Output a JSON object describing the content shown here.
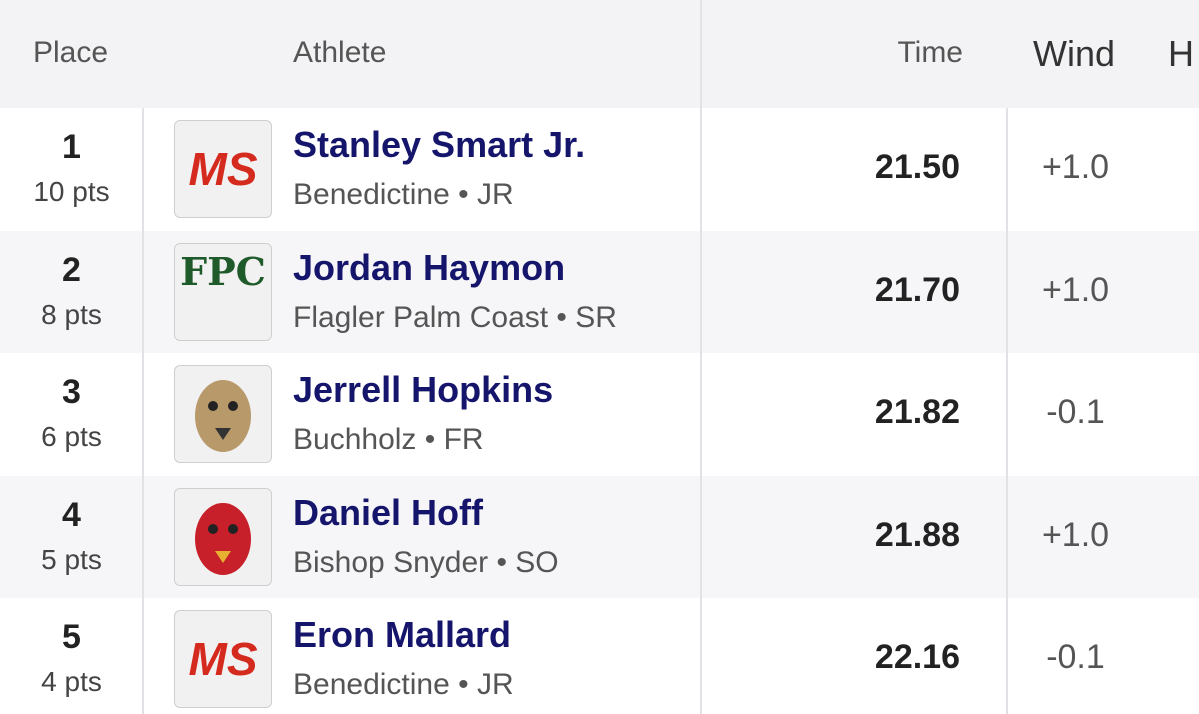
{
  "header": {
    "columns": [
      "Place",
      "Athlete",
      "Time",
      "Wind",
      "H"
    ]
  },
  "table": {
    "rows": [
      {
        "place": "1",
        "points": "10 pts",
        "logo": "MS",
        "name": "Stanley Smart Jr.",
        "school": "Benedictine • JR",
        "time": "21.50",
        "wind": "+1.0"
      },
      {
        "place": "2",
        "points": "8 pts",
        "logo": "FPC",
        "name": "Jordan Haymon",
        "school": "Flagler Palm Coast • SR",
        "time": "21.70",
        "wind": "+1.0"
      },
      {
        "place": "3",
        "points": "6 pts",
        "name": "Jerrell Hopkins",
        "school": "Buchholz • FR",
        "time": "21.82",
        "wind": "-0.1"
      },
      {
        "place": "4",
        "points": "5 pts",
        "name": "Daniel Hoff",
        "school": "Bishop Snyder • SO",
        "time": "21.88",
        "wind": "+1.0"
      },
      {
        "place": "5",
        "points": "4 pts",
        "logo": "MS",
        "name": "Eron Mallard",
        "school": "Benedictine • JR",
        "time": "22.16",
        "wind": "-0.1"
      }
    ]
  }
}
